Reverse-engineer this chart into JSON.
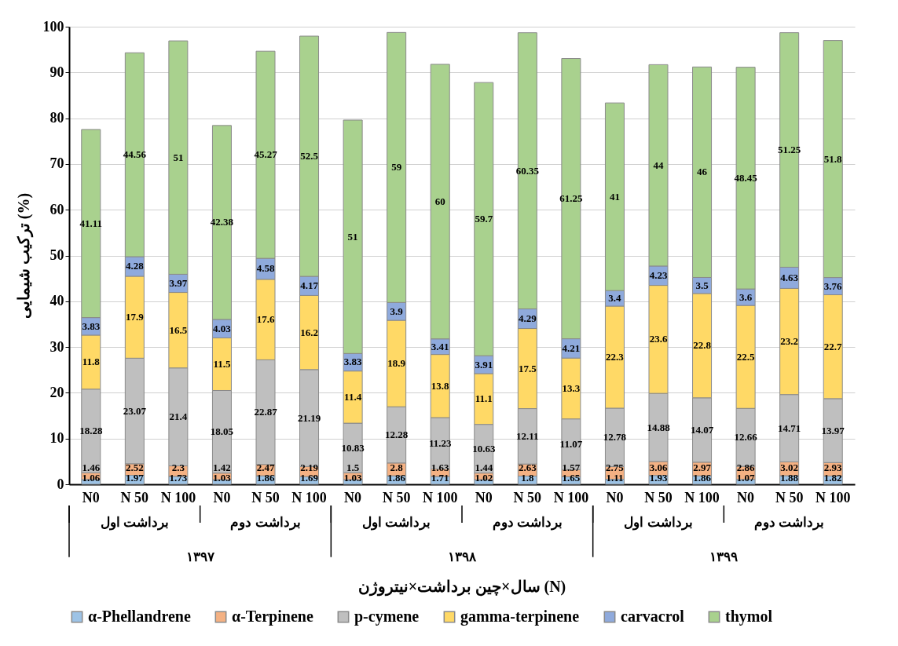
{
  "chart_data": {
    "type": "bar",
    "stacked": true,
    "data_labels": true,
    "grid": "y",
    "legend": "bottom",
    "ylabel": "ترکیب شیمایی (%)",
    "xlabel": "سال×چین برداشت×نیتروژن (N)",
    "ylim": [
      0,
      100
    ],
    "yticks": [
      0,
      10,
      20,
      30,
      40,
      50,
      60,
      70,
      80,
      90,
      100
    ],
    "categories": [
      "N0",
      "N 50",
      "N 100",
      "N0",
      "N 50",
      "N 100",
      "N0",
      "N 50",
      "N 100",
      "N0",
      "N 50",
      "N 100",
      "N0",
      "N 50",
      "N 100",
      "N0",
      "N 50",
      "N 100"
    ],
    "annotations": [
      "برداشت اول",
      "برداشت دوم",
      "برداشت اول",
      "برداشت دوم",
      "برداشت اول",
      "برداشت دوم",
      "۱۳۹۷",
      "۱۳۹۸",
      "۱۳۹۹"
    ],
    "series": [
      {
        "name": "α-Phellandrene",
        "color": "#9dc3e6",
        "values": [
          1.06,
          1.97,
          1.73,
          1.03,
          1.86,
          1.69,
          1.03,
          1.86,
          1.71,
          1.02,
          1.8,
          1.65,
          1.11,
          1.93,
          1.86,
          1.07,
          1.88,
          1.82
        ]
      },
      {
        "name": "α-Terpinene",
        "color": "#f4b183",
        "values": [
          1.46,
          2.52,
          2.3,
          1.42,
          2.47,
          2.19,
          1.5,
          2.8,
          1.63,
          1.44,
          2.63,
          1.57,
          2.75,
          3.06,
          2.97,
          2.86,
          3.02,
          2.93
        ]
      },
      {
        "name": "p-cymene",
        "color": "#bfbfbf",
        "values": [
          18.28,
          23.07,
          21.4,
          18.05,
          22.87,
          21.19,
          10.83,
          12.28,
          11.23,
          10.63,
          12.11,
          11.07,
          12.78,
          14.88,
          14.07,
          12.66,
          14.71,
          13.97
        ]
      },
      {
        "name": "gamma-terpinene",
        "color": "#ffd966",
        "values": [
          11.8,
          17.9,
          16.5,
          11.5,
          17.6,
          16.2,
          11.4,
          18.9,
          13.8,
          11.1,
          17.5,
          13.3,
          22.3,
          23.6,
          22.8,
          22.5,
          23.2,
          22.7
        ]
      },
      {
        "name": "carvacrol",
        "color": "#8faadc",
        "values": [
          3.83,
          4.28,
          3.97,
          4.03,
          4.58,
          4.17,
          3.83,
          3.9,
          3.41,
          3.91,
          4.29,
          4.21,
          3.4,
          4.23,
          3.5,
          3.6,
          4.63,
          3.76
        ]
      },
      {
        "name": "thymol",
        "color": "#a9d18e",
        "values": [
          41.11,
          44.56,
          51,
          42.38,
          45.27,
          52.5,
          51,
          59,
          60,
          59.7,
          60.35,
          61.25,
          41,
          44,
          46,
          48.45,
          51.25,
          51.8
        ]
      }
    ]
  }
}
